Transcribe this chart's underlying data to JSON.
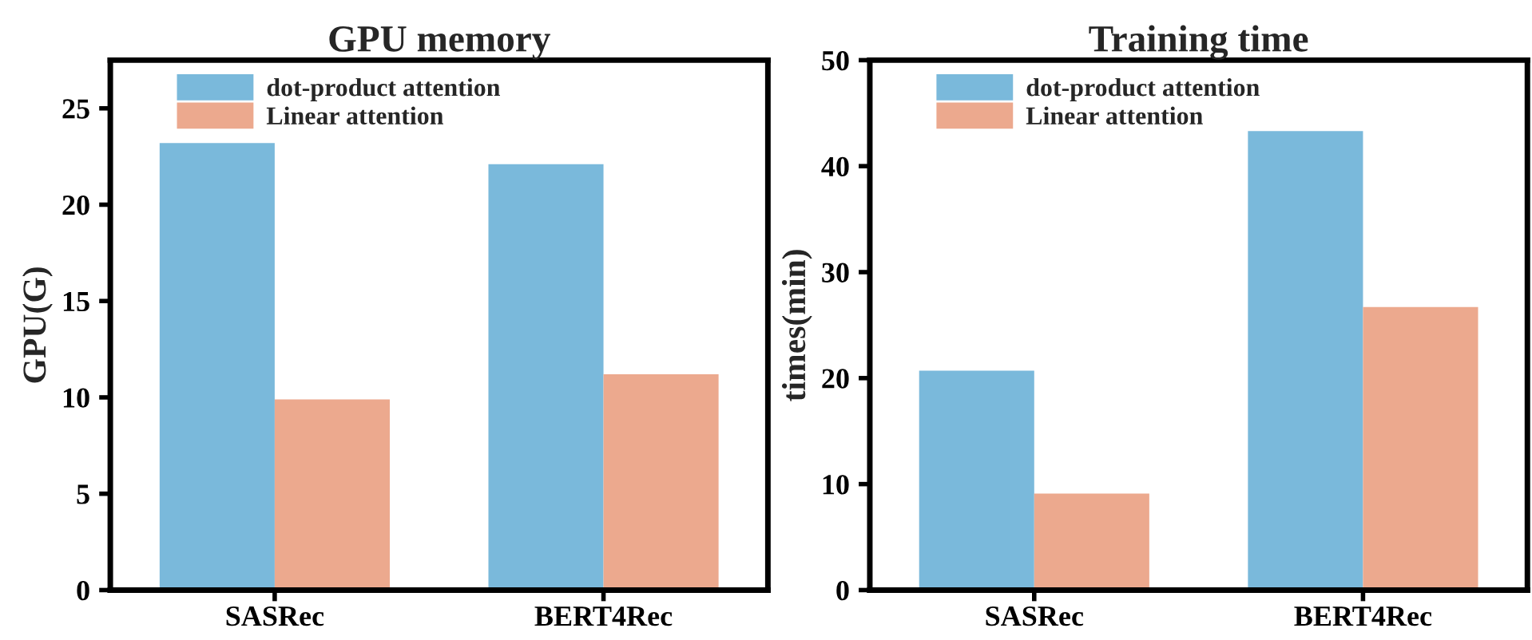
{
  "chart_data": [
    {
      "type": "bar",
      "title": "GPU memory",
      "ylabel": "GPU(G)",
      "categories": [
        "SASRec",
        "BERT4Rec"
      ],
      "series": [
        {
          "name": "dot-product attention",
          "color": "#7ab9db",
          "values": [
            23.2,
            22.1
          ]
        },
        {
          "name": "Linear attention",
          "color": "#eca98e",
          "values": [
            9.9,
            11.2
          ]
        }
      ],
      "ylim": [
        0,
        27.5
      ],
      "yticks": [
        0,
        5,
        10,
        15,
        20,
        25
      ],
      "grid": false,
      "legend": "top left"
    },
    {
      "type": "bar",
      "title": "Training time",
      "ylabel": "times(min)",
      "categories": [
        "SASRec",
        "BERT4Rec"
      ],
      "series": [
        {
          "name": "dot-product attention",
          "color": "#7ab9db",
          "values": [
            20.7,
            43.3
          ]
        },
        {
          "name": "Linear attention",
          "color": "#eca98e",
          "values": [
            9.1,
            26.7
          ]
        }
      ],
      "ylim": [
        0,
        50
      ],
      "yticks": [
        0,
        10,
        20,
        30,
        40,
        50
      ],
      "grid": false,
      "legend": "top left"
    }
  ]
}
